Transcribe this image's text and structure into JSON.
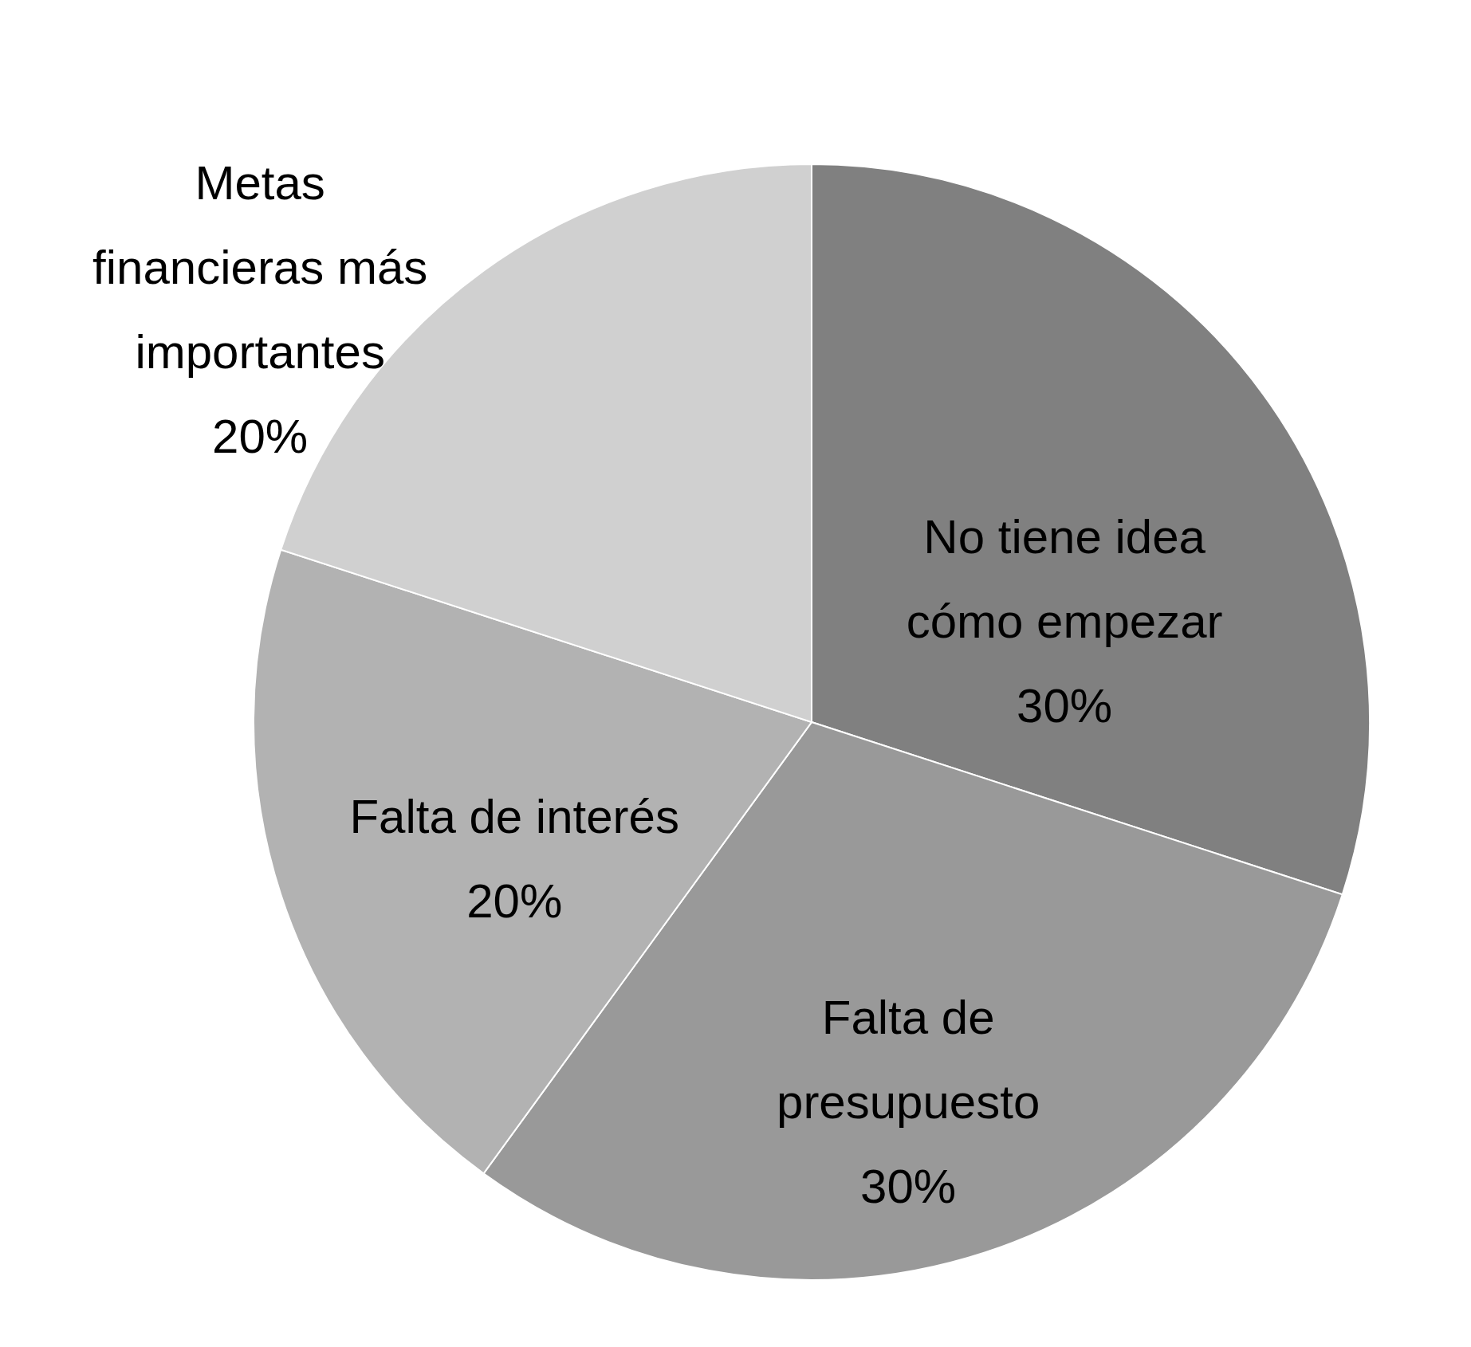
{
  "chart_data": {
    "type": "pie",
    "categories": [
      "No tiene idea cómo empezar",
      "Falta de presupuesto",
      "Falta de interés",
      "Metas financieras más importantes"
    ],
    "values": [
      30,
      30,
      20,
      20
    ],
    "value_labels": [
      "30%",
      "30%",
      "20%",
      "20%"
    ],
    "colors": [
      "#808080",
      "#999999",
      "#b2b2b2",
      "#d0d0d0"
    ]
  }
}
